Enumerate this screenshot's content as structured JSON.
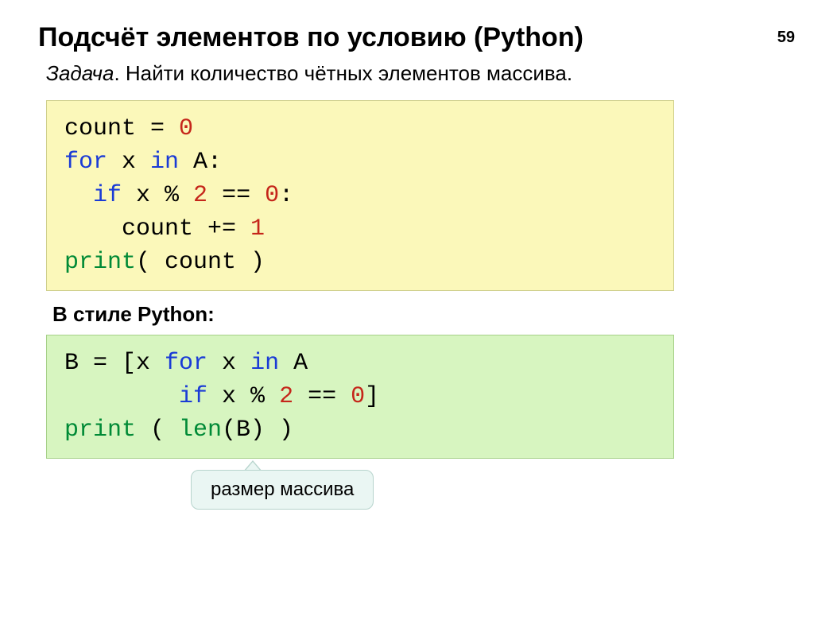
{
  "page_number": "59",
  "title": "Подсчёт элементов по условию (Python)",
  "subtitle_label": "Задача",
  "subtitle_text": ". Найти количество чётных элементов массива.",
  "section_label": "В стиле Python:",
  "callout": "размер массива",
  "colors": {
    "keyword_blue": "#1a3bd6",
    "keyword_green": "#008a36",
    "number_red": "#c5261a",
    "text_black": "#000000",
    "box_yellow_bg": "#fbf8ba",
    "box_yellow_border": "#cfcf8c",
    "box_green_bg": "#d7f5c0",
    "box_green_border": "#a6d088",
    "callout_bg": "#eaf6f3",
    "callout_border": "#b7d4cd"
  },
  "code1": {
    "l1_a": "count = ",
    "l1_b": "0",
    "l2_a": "for",
    "l2_b": " x ",
    "l2_c": "in",
    "l2_d": " A:",
    "l3_a": "  ",
    "l3_b": "if",
    "l3_c": " x % ",
    "l3_d": "2",
    "l3_e": " == ",
    "l3_f": "0",
    "l3_g": ":",
    "l4_a": "    count += ",
    "l4_b": "1",
    "l5_a": "print",
    "l5_b": "( count )"
  },
  "code2": {
    "l1_a": "B = [x ",
    "l1_b": "for",
    "l1_c": " x ",
    "l1_d": "in",
    "l1_e": " A",
    "l2_a": "        ",
    "l2_b": "if",
    "l2_c": " x % ",
    "l2_d": "2",
    "l2_e": " == ",
    "l2_f": "0",
    "l2_g": "]",
    "l3_a": "print",
    "l3_b": " ( ",
    "l3_c": "len",
    "l3_d": "(B) )"
  },
  "fonts": {
    "title_size_pt": 34,
    "body_size_pt": 26,
    "code_size_pt": 30,
    "code_family": "Courier New"
  }
}
